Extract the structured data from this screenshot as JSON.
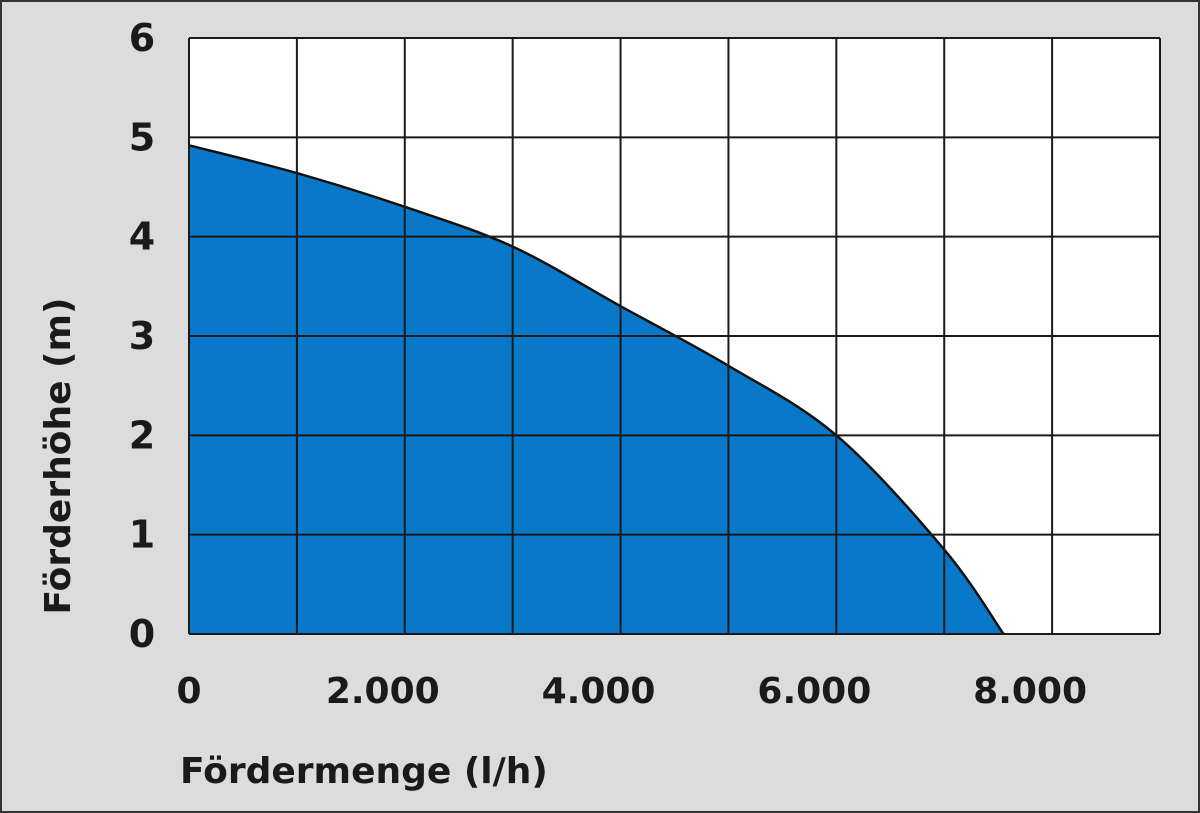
{
  "chart_data": {
    "type": "area",
    "title": "",
    "xlabel": "Fördermenge (l/h)",
    "ylabel": "Förderhöhe (m)",
    "xlim": [
      0,
      9000
    ],
    "ylim": [
      0,
      6
    ],
    "grid": true,
    "x_ticks": [
      0,
      1000,
      2000,
      3000,
      4000,
      5000,
      6000,
      7000,
      8000,
      9000
    ],
    "x_tick_labels": [
      {
        "value": 0,
        "label": "0"
      },
      {
        "value": 2000,
        "label": "2.000"
      },
      {
        "value": 4000,
        "label": "4.000"
      },
      {
        "value": 6000,
        "label": "6.000"
      },
      {
        "value": 8000,
        "label": "8.000"
      }
    ],
    "y_tick_labels": [
      {
        "value": 0,
        "label": "0"
      },
      {
        "value": 1,
        "label": "1"
      },
      {
        "value": 2,
        "label": "2"
      },
      {
        "value": 3,
        "label": "3"
      },
      {
        "value": 4,
        "label": "4"
      },
      {
        "value": 5,
        "label": "5"
      },
      {
        "value": 6,
        "label": "6"
      }
    ],
    "series": [
      {
        "x": [
          0,
          1000,
          2000,
          3000,
          4000,
          5000,
          6000,
          7000,
          7550
        ],
        "y": [
          4.92,
          4.64,
          4.3,
          3.9,
          3.3,
          2.7,
          2.0,
          0.85,
          0
        ]
      }
    ],
    "colors": {
      "fill": "#0a78c8",
      "plot_bg": "#ffffff",
      "page_bg": "#dcdcdc",
      "grid": "#1a1a1a"
    }
  }
}
